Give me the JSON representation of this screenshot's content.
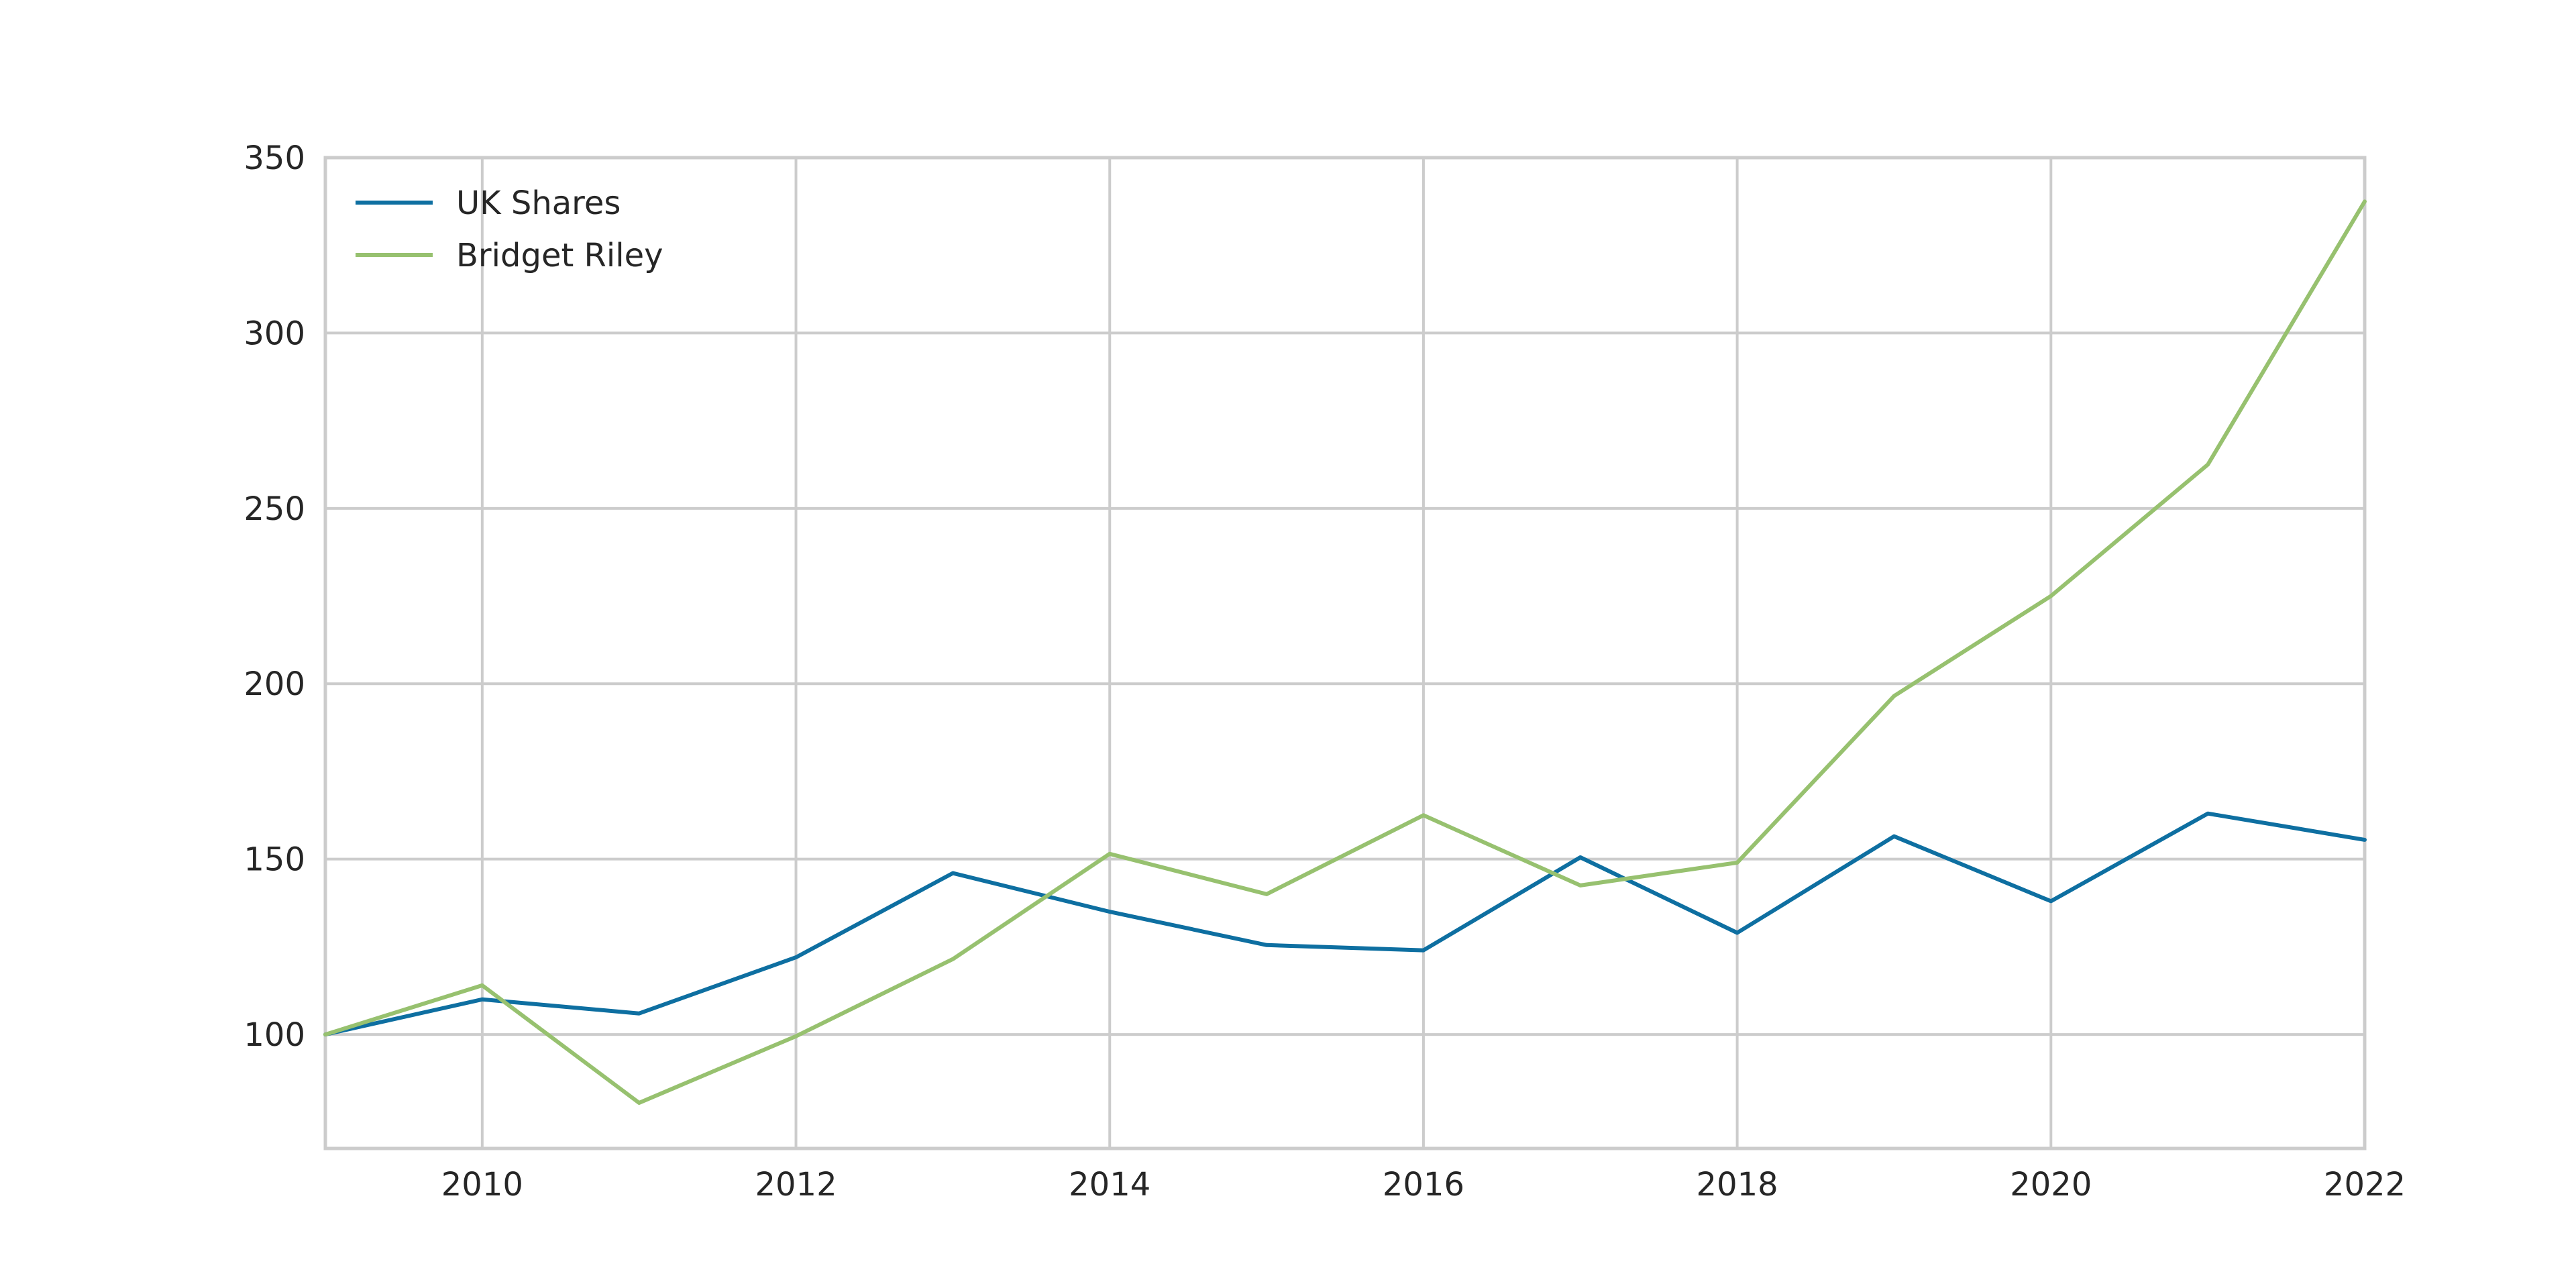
{
  "chart_data": {
    "type": "line",
    "title": "",
    "xlabel": "",
    "ylabel": "",
    "x": [
      2009,
      2010,
      2011,
      2012,
      2013,
      2014,
      2015,
      2016,
      2017,
      2018,
      2019,
      2020,
      2021,
      2022
    ],
    "series": [
      {
        "name": "UK Shares",
        "color": "#0e6fa1",
        "values": [
          100,
          110,
          106,
          122,
          146,
          135,
          125.5,
          124,
          150.5,
          129,
          156.5,
          138,
          163,
          155.5
        ]
      },
      {
        "name": "Bridget Riley",
        "color": "#97c16f",
        "values": [
          100,
          114,
          80.5,
          99.5,
          121.5,
          151.5,
          140,
          162.5,
          142.5,
          149,
          196.5,
          225,
          262.5,
          337.5
        ]
      }
    ],
    "xlim": [
      2009,
      2022
    ],
    "ylim": [
      67.5,
      350
    ],
    "xticks": [
      2010,
      2012,
      2014,
      2016,
      2018,
      2020,
      2022
    ],
    "yticks": [
      100,
      150,
      200,
      250,
      300,
      350
    ],
    "grid": true,
    "legend_position": "top-left",
    "colors": {
      "grid": "#cccccc",
      "text": "#262626",
      "background": "#ffffff"
    }
  }
}
